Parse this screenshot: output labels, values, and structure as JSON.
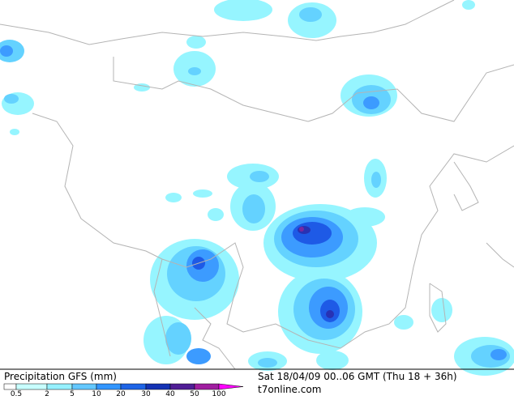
{
  "legend": {
    "title": "Precipitation GFS (mm)",
    "ticks": [
      0.5,
      2,
      5,
      10,
      20,
      30,
      40,
      50,
      100
    ],
    "colors": [
      "#ffffff",
      "#c8ffff",
      "#96f0ff",
      "#64c8ff",
      "#3296ff",
      "#1e64e6",
      "#1432b4",
      "#501e96",
      "#a01ea0",
      "#ff00ff"
    ]
  },
  "info": {
    "time": "Sat 18/04/09 00..06 GMT (Thu 18 + 36h)",
    "source": "t7online.com"
  }
}
